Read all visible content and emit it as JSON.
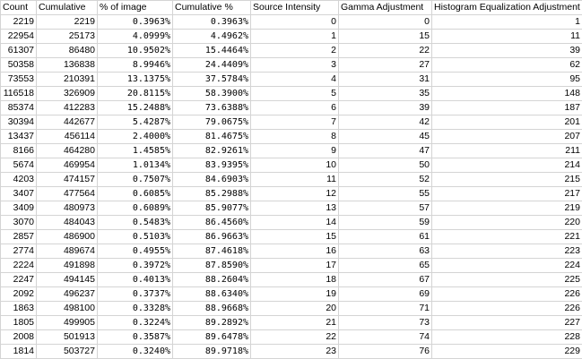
{
  "sheet": {
    "headers": [
      "Count",
      "Cumulative",
      "% of image",
      "Cumulative %",
      "Source Intensity",
      "Gamma Adjustment",
      "Histogram Equalization Adjustment"
    ],
    "rows": [
      [
        "2219",
        "2219",
        "0.3963%",
        "0.3963%",
        "0",
        "0",
        "1"
      ],
      [
        "22954",
        "25173",
        "4.0999%",
        "4.4962%",
        "1",
        "15",
        "11"
      ],
      [
        "61307",
        "86480",
        "10.9502%",
        "15.4464%",
        "2",
        "22",
        "39"
      ],
      [
        "50358",
        "136838",
        "8.9946%",
        "24.4409%",
        "3",
        "27",
        "62"
      ],
      [
        "73553",
        "210391",
        "13.1375%",
        "37.5784%",
        "4",
        "31",
        "95"
      ],
      [
        "116518",
        "326909",
        "20.8115%",
        "58.3900%",
        "5",
        "35",
        "148"
      ],
      [
        "85374",
        "412283",
        "15.2488%",
        "73.6388%",
        "6",
        "39",
        "187"
      ],
      [
        "30394",
        "442677",
        "5.4287%",
        "79.0675%",
        "7",
        "42",
        "201"
      ],
      [
        "13437",
        "456114",
        "2.4000%",
        "81.4675%",
        "8",
        "45",
        "207"
      ],
      [
        "8166",
        "464280",
        "1.4585%",
        "82.9261%",
        "9",
        "47",
        "211"
      ],
      [
        "5674",
        "469954",
        "1.0134%",
        "83.9395%",
        "10",
        "50",
        "214"
      ],
      [
        "4203",
        "474157",
        "0.7507%",
        "84.6903%",
        "11",
        "52",
        "215"
      ],
      [
        "3407",
        "477564",
        "0.6085%",
        "85.2988%",
        "12",
        "55",
        "217"
      ],
      [
        "3409",
        "480973",
        "0.6089%",
        "85.9077%",
        "13",
        "57",
        "219"
      ],
      [
        "3070",
        "484043",
        "0.5483%",
        "86.4560%",
        "14",
        "59",
        "220"
      ],
      [
        "2857",
        "486900",
        "0.5103%",
        "86.9663%",
        "15",
        "61",
        "221"
      ],
      [
        "2774",
        "489674",
        "0.4955%",
        "87.4618%",
        "16",
        "63",
        "223"
      ],
      [
        "2224",
        "491898",
        "0.3972%",
        "87.8590%",
        "17",
        "65",
        "224"
      ],
      [
        "2247",
        "494145",
        "0.4013%",
        "88.2604%",
        "18",
        "67",
        "225"
      ],
      [
        "2092",
        "496237",
        "0.3737%",
        "88.6340%",
        "19",
        "69",
        "226"
      ],
      [
        "1863",
        "498100",
        "0.3328%",
        "88.9668%",
        "20",
        "71",
        "226"
      ],
      [
        "1805",
        "499905",
        "0.3224%",
        "89.2892%",
        "21",
        "73",
        "227"
      ],
      [
        "2008",
        "501913",
        "0.3587%",
        "89.6478%",
        "22",
        "74",
        "228"
      ],
      [
        "1814",
        "503727",
        "0.3240%",
        "89.9718%",
        "23",
        "76",
        "229"
      ]
    ]
  }
}
